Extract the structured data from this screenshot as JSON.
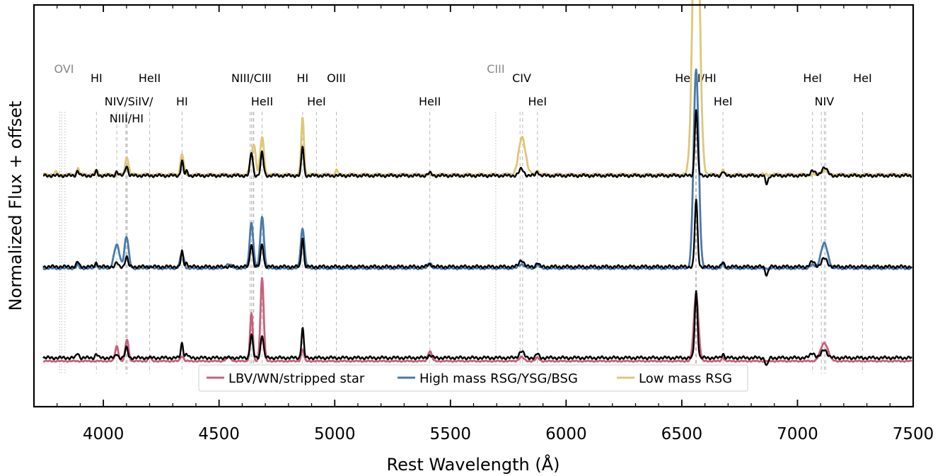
{
  "chart_data": {
    "type": "line",
    "xlabel": "Rest Wavelength (Å)",
    "ylabel": "Normalized Flux + offset",
    "xlim": [
      3700,
      7500
    ],
    "ylim": [
      -0.55,
      4.3
    ],
    "xticks": [
      4000,
      4500,
      5000,
      5500,
      6000,
      6500,
      7000,
      7500
    ],
    "xtick_labels": [
      "4000",
      "4500",
      "5000",
      "5500",
      "6000",
      "6500",
      "7000",
      "7500"
    ],
    "grid": false,
    "legend_position": "bottom-center",
    "colors": {
      "observed": "#000000",
      "LBV/WN/stripped star": "#c8607a",
      "High mass RSG/YSG/BSG": "#4a7aaa",
      "Low mass RSG": "#dcc878",
      "line_marker": "#bbbbbb",
      "label_gray": "#888888"
    },
    "offsets": [
      0.0,
      1.1,
      2.2
    ],
    "legend": [
      "LBV/WN/stripped star",
      "High mass RSG/YSG/BSG",
      "Low mass RSG"
    ],
    "line_labels": [
      {
        "text": "OVI",
        "wavelength": 3830,
        "row": 0,
        "gray": true
      },
      {
        "text": "HI",
        "wavelength": 3970,
        "row": 1
      },
      {
        "text": "HeII",
        "wavelength": 4200,
        "row": 1
      },
      {
        "text": "NIII/CIII",
        "wavelength": 4640,
        "row": 1
      },
      {
        "text": "HI",
        "wavelength": 4861,
        "row": 1
      },
      {
        "text": "OIII",
        "wavelength": 5007,
        "row": 1
      },
      {
        "text": "CIII",
        "wavelength": 5696,
        "row": 0,
        "gray": true
      },
      {
        "text": "CIV",
        "wavelength": 5808,
        "row": 1
      },
      {
        "text": "He II/HI",
        "wavelength": 6560,
        "row": 1
      },
      {
        "text": "HeI",
        "wavelength": 7065,
        "row": 1
      },
      {
        "text": "HeI",
        "wavelength": 7281,
        "row": 1
      },
      {
        "text": "NIV/SiIV/",
        "wavelength": 4110,
        "row": 2
      },
      {
        "text": "HI",
        "wavelength": 4340,
        "row": 2
      },
      {
        "text": "HeII",
        "wavelength": 4686,
        "row": 2
      },
      {
        "text": "HeI",
        "wavelength": 4921,
        "row": 2
      },
      {
        "text": "HeII",
        "wavelength": 5411,
        "row": 2
      },
      {
        "text": "HeI",
        "wavelength": 5876,
        "row": 2
      },
      {
        "text": "HeI",
        "wavelength": 6678,
        "row": 2
      },
      {
        "text": "NIV",
        "wavelength": 7116,
        "row": 2
      },
      {
        "text": "NIII/HI",
        "wavelength": 4100,
        "row": 3
      }
    ],
    "marker_lines": {
      "dotted": [
        3811,
        3819,
        3834,
        5696
      ],
      "dashed": [
        3970,
        4058,
        4097,
        4101,
        4103,
        4200,
        4340,
        4634,
        4640,
        4647,
        4650,
        4686,
        4861,
        4921,
        5007,
        5411,
        5801,
        5812,
        5876,
        6560,
        6563,
        6678,
        7065,
        7103,
        7116,
        7122,
        7281
      ]
    },
    "series": [
      {
        "name": "Low mass RSG",
        "color": "#dcc878",
        "offset": 2.2,
        "baseline": 0.05,
        "wiggle": 0.02,
        "peaks": [
          [
            3797,
            0.04,
            4
          ],
          [
            3889,
            0.08,
            5
          ],
          [
            3970,
            0.07,
            5
          ],
          [
            4102,
            0.22,
            7
          ],
          [
            4340,
            0.25,
            7
          ],
          [
            4634,
            0.12,
            5
          ],
          [
            4650,
            0.38,
            8
          ],
          [
            4686,
            0.45,
            8
          ],
          [
            4861,
            0.68,
            6
          ],
          [
            5007,
            0.07,
            4
          ],
          [
            5810,
            0.45,
            15
          ],
          [
            5876,
            0.05,
            6
          ],
          [
            6562,
            4.0,
            14
          ],
          [
            6678,
            0.05,
            5
          ],
          [
            7116,
            0.05,
            15
          ]
        ]
      },
      {
        "name": "High mass RSG/YSG/BSG",
        "color": "#4a7aaa",
        "offset": 1.1,
        "baseline": 0.02,
        "wiggle": 0.012,
        "peaks": [
          [
            3889,
            0.05,
            5
          ],
          [
            3970,
            0.05,
            5
          ],
          [
            4058,
            0.28,
            12
          ],
          [
            4100,
            0.38,
            9
          ],
          [
            4200,
            0.03,
            6
          ],
          [
            4340,
            0.18,
            8
          ],
          [
            4541,
            0.05,
            12
          ],
          [
            4640,
            0.55,
            8
          ],
          [
            4686,
            0.62,
            8
          ],
          [
            4861,
            0.48,
            8
          ],
          [
            5411,
            0.07,
            8
          ],
          [
            5807,
            0.05,
            12
          ],
          [
            5876,
            0.04,
            8
          ],
          [
            6562,
            2.4,
            11
          ],
          [
            6678,
            0.07,
            5
          ],
          [
            7065,
            0.04,
            10
          ],
          [
            7116,
            0.3,
            15
          ]
        ]
      },
      {
        "name": "LBV/WN/stripped star",
        "color": "#c8607a",
        "offset": 0.0,
        "baseline": 0.0,
        "wiggle": 0.008,
        "peaks": [
          [
            4058,
            0.18,
            7
          ],
          [
            4102,
            0.26,
            7
          ],
          [
            4200,
            0.05,
            6
          ],
          [
            4340,
            0.06,
            7
          ],
          [
            4541,
            0.05,
            10
          ],
          [
            4640,
            0.58,
            6
          ],
          [
            4686,
            1.0,
            7
          ],
          [
            4861,
            0.14,
            6
          ],
          [
            5411,
            0.12,
            8
          ],
          [
            5807,
            0.05,
            10
          ],
          [
            5876,
            0.04,
            8
          ],
          [
            6562,
            0.8,
            10
          ],
          [
            6678,
            0.05,
            5
          ],
          [
            7116,
            0.22,
            16
          ]
        ]
      },
      {
        "name": "observed",
        "color": "#000000",
        "offset": 2.2,
        "baseline": 0.04,
        "wiggle": 0.02,
        "peaks": [
          [
            3889,
            0.06,
            5
          ],
          [
            3970,
            0.05,
            5
          ],
          [
            4058,
            0.05,
            5
          ],
          [
            4100,
            0.12,
            6
          ],
          [
            4340,
            0.18,
            5
          ],
          [
            4360,
            0.05,
            5
          ],
          [
            4640,
            0.28,
            6
          ],
          [
            4686,
            0.28,
            6
          ],
          [
            4861,
            0.36,
            5
          ],
          [
            5411,
            0.03,
            8
          ],
          [
            5807,
            0.08,
            10
          ],
          [
            5876,
            0.05,
            6
          ],
          [
            6562,
            0.8,
            6
          ],
          [
            6678,
            0.05,
            5
          ],
          [
            7065,
            0.06,
            10
          ],
          [
            7116,
            0.1,
            12
          ]
        ],
        "absorption": [
          [
            6867,
            0.1,
            6
          ]
        ]
      },
      {
        "name": "observed",
        "color": "#000000",
        "offset": 1.1,
        "baseline": 0.04,
        "wiggle": 0.02,
        "peaks": [
          [
            3889,
            0.06,
            5
          ],
          [
            3970,
            0.05,
            5
          ],
          [
            4058,
            0.05,
            5
          ],
          [
            4100,
            0.12,
            6
          ],
          [
            4340,
            0.18,
            5
          ],
          [
            4360,
            0.05,
            5
          ],
          [
            4640,
            0.28,
            6
          ],
          [
            4686,
            0.28,
            6
          ],
          [
            4861,
            0.36,
            5
          ],
          [
            5411,
            0.03,
            8
          ],
          [
            5807,
            0.08,
            10
          ],
          [
            5876,
            0.05,
            6
          ],
          [
            6562,
            0.8,
            6
          ],
          [
            6678,
            0.05,
            5
          ],
          [
            7065,
            0.06,
            10
          ],
          [
            7116,
            0.1,
            12
          ]
        ],
        "absorption": [
          [
            6867,
            0.1,
            6
          ]
        ]
      },
      {
        "name": "observed",
        "color": "#000000",
        "offset": 0.0,
        "baseline": 0.04,
        "wiggle": 0.02,
        "peaks": [
          [
            3889,
            0.06,
            5
          ],
          [
            3970,
            0.05,
            5
          ],
          [
            4058,
            0.05,
            5
          ],
          [
            4100,
            0.12,
            6
          ],
          [
            4340,
            0.18,
            5
          ],
          [
            4360,
            0.05,
            5
          ],
          [
            4640,
            0.28,
            6
          ],
          [
            4686,
            0.28,
            6
          ],
          [
            4861,
            0.36,
            5
          ],
          [
            5411,
            0.03,
            8
          ],
          [
            5807,
            0.08,
            10
          ],
          [
            5876,
            0.05,
            6
          ],
          [
            6562,
            0.8,
            6
          ],
          [
            6678,
            0.05,
            5
          ],
          [
            7065,
            0.06,
            10
          ],
          [
            7116,
            0.1,
            12
          ]
        ],
        "absorption": [
          [
            6867,
            0.1,
            6
          ]
        ]
      }
    ]
  }
}
